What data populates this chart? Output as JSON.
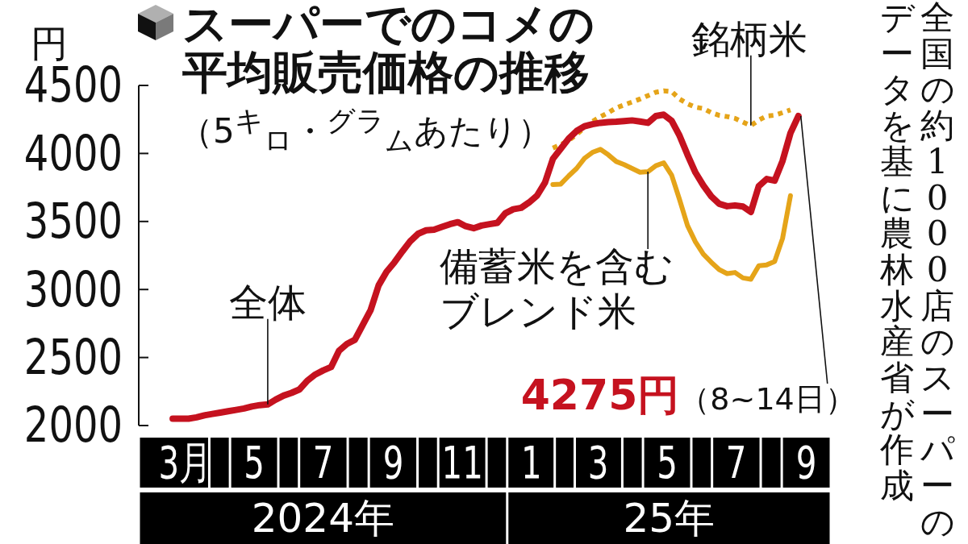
{
  "chart_data": {
    "type": "line",
    "title": "スーパーでのコメの平均販売価格の推移",
    "subtitle": "（5$^{キ}$$_{ロ}$・$^{グラ}$$_{ム}$あたり）",
    "ylabel": "円",
    "x": [
      "2024-03-04",
      "2024-03-11",
      "2024-03-18",
      "2024-03-25",
      "2024-04-01",
      "2024-04-08",
      "2024-04-15",
      "2024-04-22",
      "2024-04-29",
      "2024-05-06",
      "2024-05-13",
      "2024-05-20",
      "2024-05-27",
      "2024-06-03",
      "2024-06-10",
      "2024-06-17",
      "2024-06-24",
      "2024-07-01",
      "2024-07-08",
      "2024-07-15",
      "2024-07-22",
      "2024-07-29",
      "2024-08-05",
      "2024-08-12",
      "2024-08-19",
      "2024-08-26",
      "2024-09-02",
      "2024-09-09",
      "2024-09-16",
      "2024-09-23",
      "2024-09-30",
      "2024-10-07",
      "2024-10-14",
      "2024-10-21",
      "2024-10-28",
      "2024-11-04",
      "2024-11-11",
      "2024-11-18",
      "2024-11-25",
      "2024-12-02",
      "2024-12-09",
      "2024-12-16",
      "2024-12-23",
      "2024-12-30",
      "2025-01-06",
      "2025-01-13",
      "2025-01-20",
      "2025-01-27",
      "2025-02-03",
      "2025-02-10",
      "2025-02-17",
      "2025-02-24",
      "2025-03-03",
      "2025-03-10",
      "2025-03-17",
      "2025-03-24",
      "2025-03-31",
      "2025-04-07",
      "2025-04-14",
      "2025-04-21",
      "2025-04-28",
      "2025-05-05",
      "2025-05-12",
      "2025-05-19",
      "2025-05-26",
      "2025-06-02",
      "2025-06-09",
      "2025-06-16",
      "2025-06-23",
      "2025-06-30",
      "2025-07-07",
      "2025-07-14",
      "2025-07-21",
      "2025-07-28",
      "2025-08-04",
      "2025-08-11",
      "2025-08-18",
      "2025-08-25",
      "2025-09-01",
      "2025-09-08"
    ],
    "xlim": [
      "2024-02-03",
      "2025-09-15"
    ],
    "xticks": [
      {
        "value": "2024-03-15",
        "label": "3月"
      },
      {
        "value": "2024-05-15",
        "label": "5"
      },
      {
        "value": "2024-07-15",
        "label": "7"
      },
      {
        "value": "2024-09-15",
        "label": "9"
      },
      {
        "value": "2024-11-15",
        "label": "11"
      },
      {
        "value": "2025-01-15",
        "label": "1"
      },
      {
        "value": "2025-03-15",
        "label": "3"
      },
      {
        "value": "2025-05-15",
        "label": "5"
      },
      {
        "value": "2025-07-15",
        "label": "7"
      },
      {
        "value": "2025-09-15",
        "label": "9"
      }
    ],
    "ylim": [
      2000,
      4500
    ],
    "yticks": [
      2000,
      2500,
      3000,
      3500,
      4000,
      4500
    ],
    "series": [
      {
        "name": "全体",
        "color": "#c5121f",
        "values": [
          2050,
          2050,
          2050,
          2060,
          2075,
          2085,
          2095,
          2105,
          2115,
          2125,
          2140,
          2150,
          2155,
          2190,
          2220,
          2240,
          2265,
          2330,
          2375,
          2405,
          2430,
          2550,
          2600,
          2630,
          2740,
          2850,
          3030,
          3130,
          3200,
          3280,
          3355,
          3410,
          3435,
          3440,
          3460,
          3480,
          3495,
          3465,
          3450,
          3470,
          3480,
          3490,
          3560,
          3590,
          3600,
          3640,
          3690,
          3785,
          3960,
          4035,
          4110,
          4165,
          4200,
          4215,
          4225,
          4230,
          4233,
          4238,
          4243,
          4235,
          4225,
          4275,
          4285,
          4240,
          4130,
          3990,
          3860,
          3765,
          3685,
          3630,
          3612,
          3618,
          3610,
          3570,
          3760,
          3812,
          3800,
          3945,
          4150,
          4275
        ]
      },
      {
        "name": "備蓄米を含むブレンド米",
        "color": "#e5a419",
        "values": [
          null,
          null,
          null,
          null,
          null,
          null,
          null,
          null,
          null,
          null,
          null,
          null,
          null,
          null,
          null,
          null,
          null,
          null,
          null,
          null,
          null,
          null,
          null,
          null,
          null,
          null,
          null,
          null,
          null,
          null,
          null,
          null,
          null,
          null,
          null,
          null,
          null,
          null,
          null,
          null,
          null,
          null,
          null,
          null,
          null,
          null,
          null,
          null,
          3772,
          3775,
          3835,
          3890,
          3965,
          4008,
          4030,
          3990,
          3941,
          3918,
          3890,
          3862,
          3866,
          3910,
          3931,
          3840,
          3660,
          3470,
          3350,
          3260,
          3200,
          3146,
          3117,
          3125,
          3085,
          3075,
          3175,
          3181,
          3205,
          3375,
          3690,
          null
        ]
      },
      {
        "name": "銘柄米",
        "color": "#e5a419",
        "line_style": "dotted",
        "values": [
          null,
          null,
          null,
          null,
          null,
          null,
          null,
          null,
          null,
          null,
          null,
          null,
          null,
          null,
          null,
          null,
          null,
          null,
          null,
          null,
          null,
          null,
          null,
          null,
          null,
          null,
          null,
          null,
          null,
          null,
          null,
          null,
          null,
          null,
          null,
          null,
          null,
          null,
          null,
          null,
          null,
          null,
          null,
          null,
          null,
          null,
          null,
          null,
          4040,
          4065,
          4095,
          4140,
          4190,
          4235,
          4270,
          4300,
          4335,
          4357,
          4378,
          4400,
          4425,
          4450,
          4460,
          4455,
          4400,
          4365,
          4340,
          4330,
          4300,
          4280,
          4271,
          4258,
          4230,
          4205,
          4245,
          4275,
          4281,
          4300,
          4320,
          null
        ]
      }
    ],
    "annotations": [
      {
        "text": "4275円（8~14日）",
        "x": "2025-09-08",
        "y": 4275
      },
      "2024年",
      "25年",
      "全国の約1000店のスーパーのデータを基に農林水産省が作成"
    ]
  }
}
